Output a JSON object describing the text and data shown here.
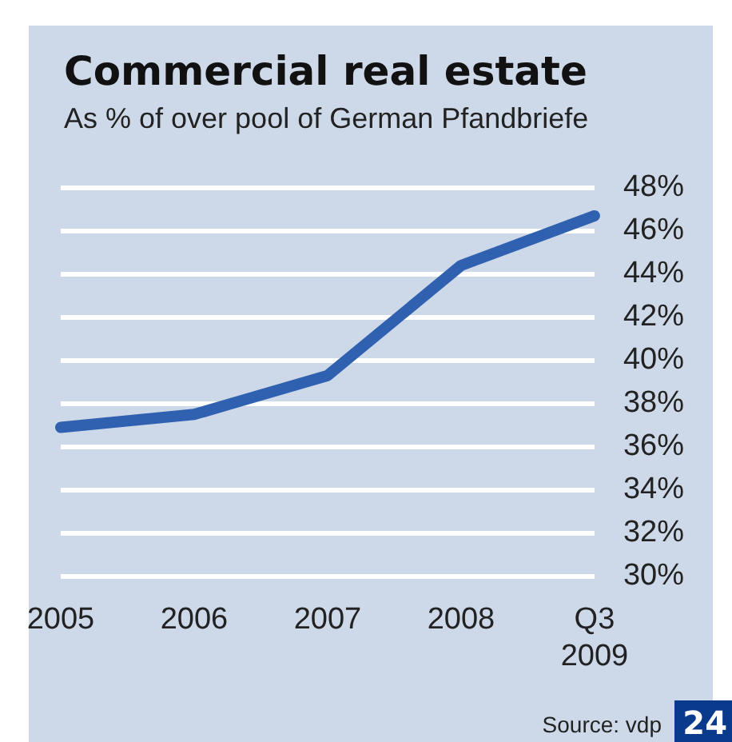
{
  "chart_data": {
    "type": "line",
    "title": "Commercial real estate",
    "subtitle": "As % of over pool of German Pfandbriefe",
    "categories": [
      "2005",
      "2006",
      "2007",
      "2008",
      "Q3 2009"
    ],
    "series": [
      {
        "color": "#3060b0",
        "values": [
          36.9,
          37.5,
          39.3,
          44.4,
          46.7
        ]
      }
    ],
    "ylim": [
      30,
      48
    ],
    "yticks": [
      {
        "value": 30,
        "label": "30%"
      },
      {
        "value": 32,
        "label": "32%"
      },
      {
        "value": 34,
        "label": "34%"
      },
      {
        "value": 36,
        "label": "36%"
      },
      {
        "value": 38,
        "label": "38%"
      },
      {
        "value": 40,
        "label": "40%"
      },
      {
        "value": 42,
        "label": "42%"
      },
      {
        "value": 44,
        "label": "44%"
      },
      {
        "value": 46,
        "label": "46%"
      },
      {
        "value": 48,
        "label": "48%"
      }
    ],
    "grid": "y",
    "legend": false,
    "marker": "none",
    "line_style": "solid",
    "annotations": [
      "Source: vdp",
      "24"
    ]
  }
}
